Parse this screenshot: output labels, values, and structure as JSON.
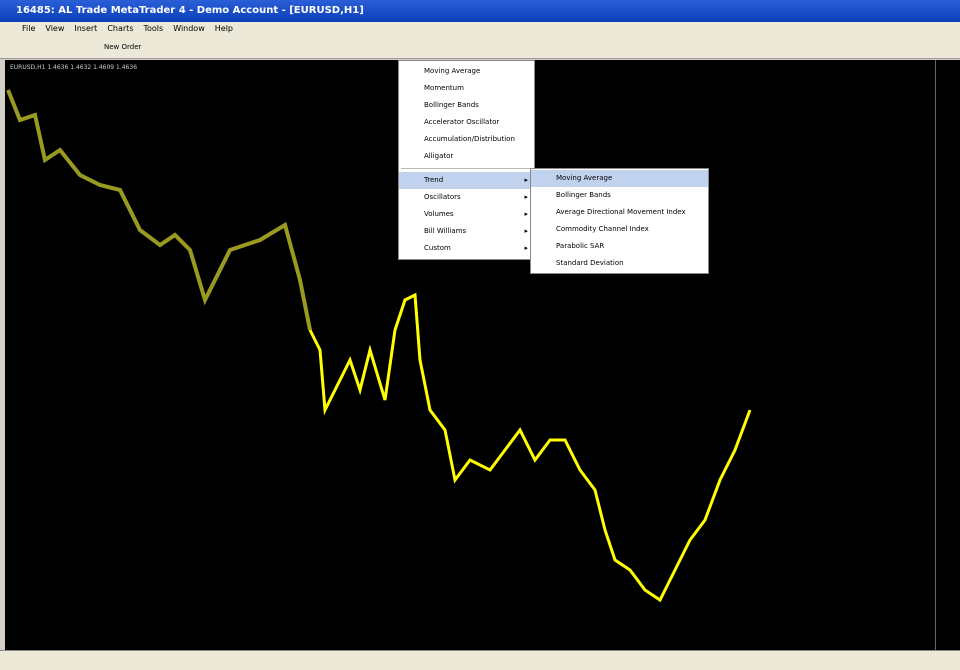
{
  "window": {
    "title": "16485: AL Trade MetaTrader 4 - Demo Account - [EURUSD,H1]"
  },
  "menu_bar": [
    "File",
    "View",
    "Insert",
    "Charts",
    "Tools",
    "Window",
    "Help"
  ],
  "toolbar": {
    "new_order": "New Order"
  },
  "chart": {
    "symbol_info": "EURUSD,H1 1.4636 1.4632 1.4609 1.4636"
  },
  "indicators_menu": {
    "items": [
      "Moving Average",
      "Momentum",
      "Bollinger Bands",
      "Accelerator Oscillator",
      "Accumulation/Distribution",
      "Alligator"
    ],
    "groups": [
      "Trend",
      "Oscillators",
      "Volumes",
      "Bill Williams",
      "Custom"
    ]
  },
  "trend_submenu": [
    "Moving Average",
    "Bollinger Bands",
    "Average Directional Movement Index",
    "Commodity Channel Index",
    "Parabolic SAR",
    "Standard Deviation"
  ]
}
